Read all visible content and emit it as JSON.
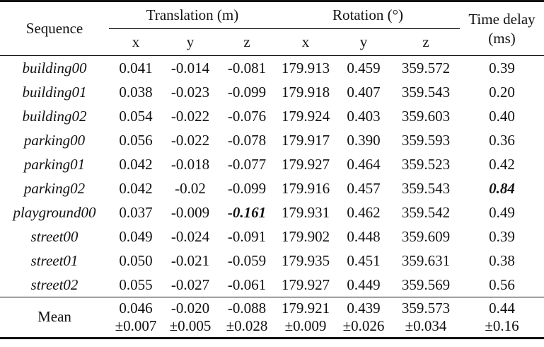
{
  "headers": {
    "sequence": "Sequence",
    "translation": "Translation (m)",
    "rotation": "Rotation (°)",
    "time_delay_line1": "Time delay",
    "time_delay_line2": "(ms)",
    "axes": [
      "x",
      "y",
      "z",
      "x",
      "y",
      "z"
    ]
  },
  "rows": [
    {
      "sequence": "building00",
      "tx": "0.041",
      "ty": "-0.014",
      "tz": "-0.081",
      "rx": "179.913",
      "ry": "0.459",
      "rz": "359.572",
      "td": "0.39"
    },
    {
      "sequence": "building01",
      "tx": "0.038",
      "ty": "-0.023",
      "tz": "-0.099",
      "rx": "179.918",
      "ry": "0.407",
      "rz": "359.543",
      "td": "0.20"
    },
    {
      "sequence": "building02",
      "tx": "0.054",
      "ty": "-0.022",
      "tz": "-0.076",
      "rx": "179.924",
      "ry": "0.403",
      "rz": "359.603",
      "td": "0.40"
    },
    {
      "sequence": "parking00",
      "tx": "0.056",
      "ty": "-0.022",
      "tz": "-0.078",
      "rx": "179.917",
      "ry": "0.390",
      "rz": "359.593",
      "td": "0.36"
    },
    {
      "sequence": "parking01",
      "tx": "0.042",
      "ty": "-0.018",
      "tz": "-0.077",
      "rx": "179.927",
      "ry": "0.464",
      "rz": "359.523",
      "td": "0.42"
    },
    {
      "sequence": "parking02",
      "tx": "0.042",
      "ty": "-0.02",
      "tz": "-0.099",
      "rx": "179.916",
      "ry": "0.457",
      "rz": "359.543",
      "td": "0.84"
    },
    {
      "sequence": "playground00",
      "tx": "0.037",
      "ty": "-0.009",
      "tz": "-0.161",
      "rx": "179.931",
      "ry": "0.462",
      "rz": "359.542",
      "td": "0.49"
    },
    {
      "sequence": "street00",
      "tx": "0.049",
      "ty": "-0.024",
      "tz": "-0.091",
      "rx": "179.902",
      "ry": "0.448",
      "rz": "359.609",
      "td": "0.39"
    },
    {
      "sequence": "street01",
      "tx": "0.050",
      "ty": "-0.021",
      "tz": "-0.059",
      "rx": "179.935",
      "ry": "0.451",
      "rz": "359.631",
      "td": "0.38"
    },
    {
      "sequence": "street02",
      "tx": "0.055",
      "ty": "-0.027",
      "tz": "-0.061",
      "rx": "179.927",
      "ry": "0.449",
      "rz": "359.569",
      "td": "0.56"
    }
  ],
  "mean": {
    "label": "Mean",
    "tx": "0.046",
    "tx_sd": "±0.007",
    "ty": "-0.020",
    "ty_sd": "±0.005",
    "tz": "-0.088",
    "tz_sd": "±0.028",
    "rx": "179.921",
    "rx_sd": "±0.009",
    "ry": "0.439",
    "ry_sd": "±0.026",
    "rz": "359.573",
    "rz_sd": "±0.034",
    "td": "0.44",
    "td_sd": "±0.16"
  }
}
